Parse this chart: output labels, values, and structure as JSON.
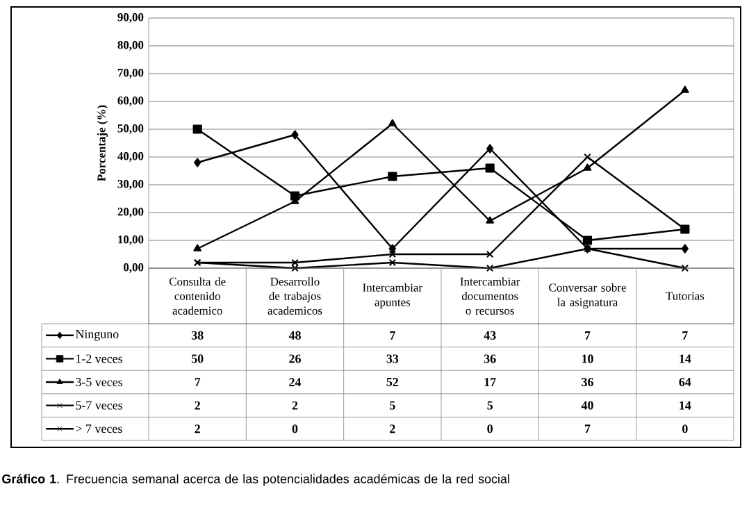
{
  "chart_data": {
    "type": "line",
    "ylabel": "Porcentaje (%)",
    "categories": [
      "Consulta de contenido academico",
      "Desarrollo de trabajos academicos",
      "Intercambiar apuntes",
      "Intercambiar documentos o recursos",
      "Conversar sobre la asignatura",
      "Tutorias"
    ],
    "series": [
      {
        "name": "Ninguno",
        "color": "#000000",
        "marker": "diamond",
        "values": [
          38,
          48,
          7,
          43,
          7,
          7
        ]
      },
      {
        "name": "1-2 veces",
        "color": "#000000",
        "marker": "square",
        "values": [
          50,
          26,
          33,
          36,
          10,
          14
        ]
      },
      {
        "name": "3-5 veces",
        "color": "#000000",
        "marker": "triangle",
        "values": [
          7,
          24,
          52,
          17,
          36,
          64
        ]
      },
      {
        "name": "5-7 veces",
        "color": "#000000",
        "marker": "cross",
        "values": [
          2,
          2,
          5,
          5,
          40,
          14
        ]
      },
      {
        "name": "> 7 veces",
        "color": "#000000",
        "marker": "cross",
        "values": [
          2,
          0,
          2,
          0,
          7,
          0
        ]
      }
    ],
    "ylim": [
      0,
      90
    ],
    "yticks": [
      {
        "value": 0,
        "label": "0,00"
      },
      {
        "value": 10,
        "label": "10,00"
      },
      {
        "value": 20,
        "label": "20,00"
      },
      {
        "value": 30,
        "label": "30,00"
      },
      {
        "value": 40,
        "label": "40,00"
      },
      {
        "value": 50,
        "label": "50,00"
      },
      {
        "value": 60,
        "label": "60,00"
      },
      {
        "value": 70,
        "label": "70,00"
      },
      {
        "value": 80,
        "label": "80,00"
      },
      {
        "value": 90,
        "label": "90,00"
      }
    ],
    "grid": "y",
    "legend": "bottom",
    "data_labels": true,
    "line_style": "solid",
    "annotations": [
      "**Gráfico 1**. Frecuencia semanal acerca de las potencialidades académicas de la red social"
    ]
  }
}
